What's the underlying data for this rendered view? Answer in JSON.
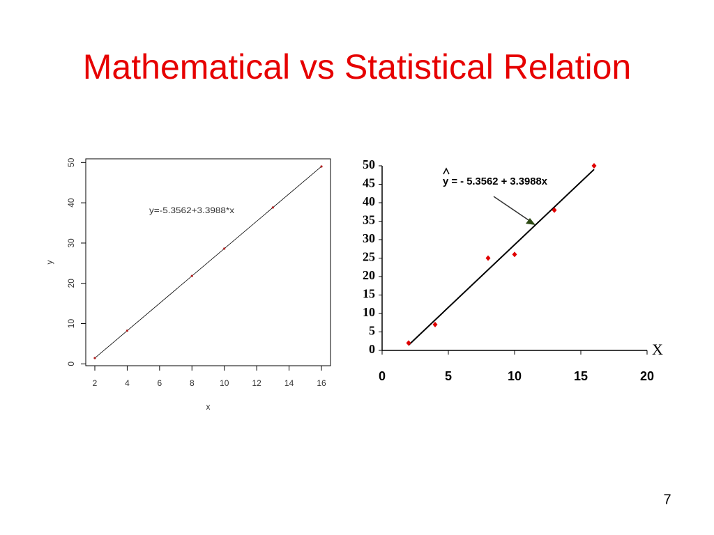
{
  "slide": {
    "title": "Mathematical vs Statistical Relation",
    "page_number": "7"
  },
  "chart_data": [
    {
      "type": "scatter",
      "annotation": "y=-5.3562+3.3988*x",
      "xlabel": "x",
      "ylabel": "y",
      "x": [
        2,
        4,
        8,
        10,
        13,
        16
      ],
      "values": [
        1.44,
        8.24,
        21.83,
        28.63,
        38.83,
        49.02
      ],
      "color": "#b22222",
      "fit_line": {
        "x": [
          2,
          16
        ],
        "values": [
          1.44,
          49.02
        ]
      },
      "xlim": [
        1.44,
        16.56
      ],
      "ylim": [
        -0.46,
        50.92
      ],
      "xticks": [
        2,
        4,
        6,
        8,
        10,
        12,
        14,
        16
      ],
      "yticks": [
        0,
        10,
        20,
        30,
        40,
        50
      ],
      "box": true
    },
    {
      "type": "scatter",
      "annotation": "y = - 5.3562 + 3.3988x",
      "xlabel": "X",
      "x": [
        2,
        4,
        8,
        10,
        13,
        16
      ],
      "values": [
        2,
        7,
        25,
        26,
        38,
        50
      ],
      "color": "#e00000",
      "fit_line": {
        "x": [
          2,
          16
        ],
        "values": [
          1.44,
          49.02
        ]
      },
      "xlim": [
        0,
        20
      ],
      "ylim": [
        0,
        50
      ],
      "xticks": [
        0,
        5,
        10,
        15,
        20
      ],
      "yticks": [
        0,
        5,
        10,
        15,
        20,
        25,
        30,
        35,
        40,
        45,
        50
      ],
      "box": false
    }
  ]
}
